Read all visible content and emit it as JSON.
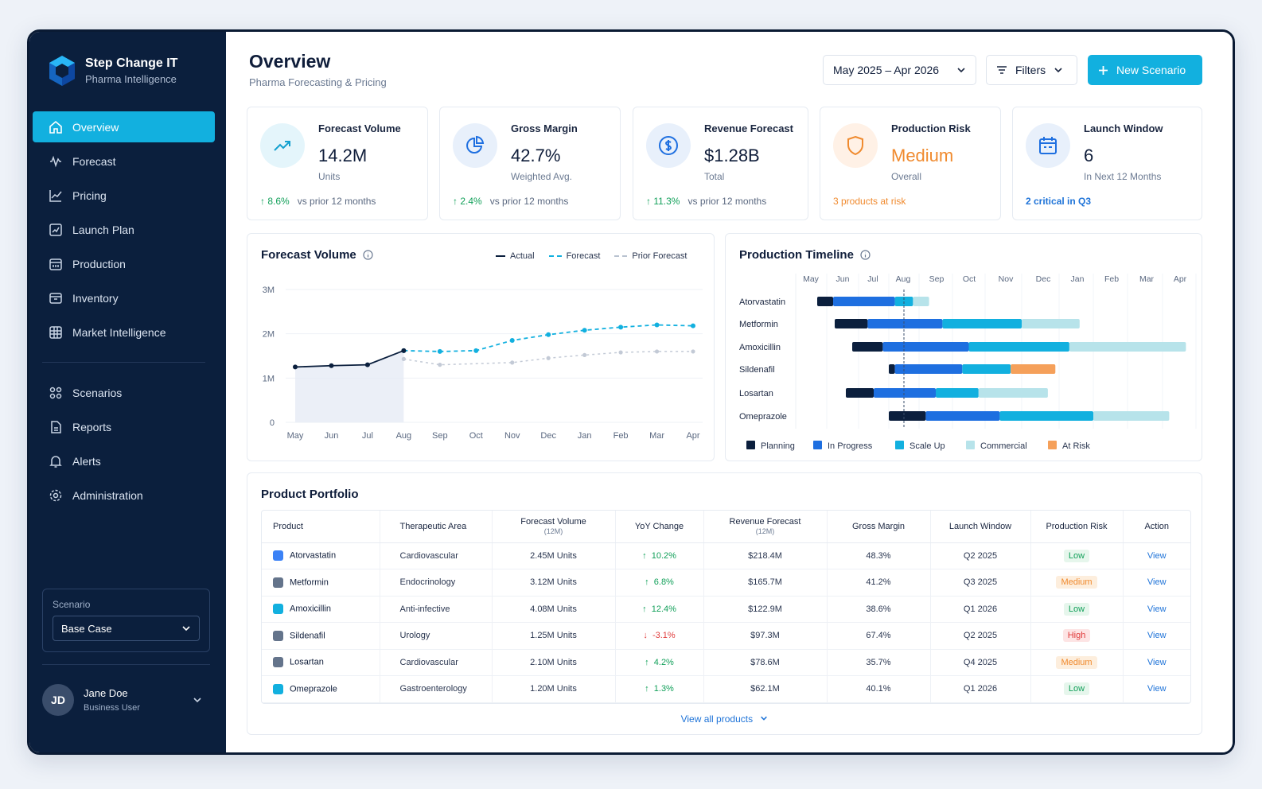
{
  "brand": {
    "name": "Step Change IT",
    "subtitle": "Pharma Intelligence"
  },
  "nav": [
    {
      "label": "Overview",
      "icon": "home-icon",
      "active": true
    },
    {
      "label": "Forecast",
      "icon": "forecast-icon"
    },
    {
      "label": "Pricing",
      "icon": "chart-line-icon"
    },
    {
      "label": "Launch Plan",
      "icon": "launch-icon"
    },
    {
      "label": "Production",
      "icon": "factory-icon"
    },
    {
      "label": "Inventory",
      "icon": "inventory-icon"
    },
    {
      "label": "Market Intelligence",
      "icon": "grid-icon"
    }
  ],
  "nav2": [
    {
      "label": "Scenarios",
      "icon": "scenarios-icon"
    },
    {
      "label": "Reports",
      "icon": "reports-icon"
    },
    {
      "label": "Alerts",
      "icon": "bell-icon"
    },
    {
      "label": "Administration",
      "icon": "gear-icon"
    }
  ],
  "scenario": {
    "label": "Scenario",
    "value": "Base Case"
  },
  "user": {
    "initials": "JD",
    "name": "Jane Doe",
    "role": "Business User"
  },
  "header": {
    "title": "Overview",
    "subtitle": "Pharma Forecasting & Pricing",
    "date_range": "May 2025 – Apr 2026",
    "filters": "Filters",
    "new_scenario": "New Scenario"
  },
  "kpis": [
    {
      "label": "Forecast Volume",
      "value": "14.2M",
      "unit": "Units",
      "delta": "8.6%",
      "footer": "vs prior 12 months",
      "icon": "trend-up-icon"
    },
    {
      "label": "Gross Margin",
      "value": "42.7%",
      "unit": "Weighted Avg.",
      "delta": "2.4%",
      "footer": "vs prior 12 months",
      "icon": "pie-icon"
    },
    {
      "label": "Revenue Forecast",
      "value": "$1.28B",
      "unit": "Total",
      "delta": "11.3%",
      "footer": "vs prior 12 months",
      "icon": "dollar-icon"
    },
    {
      "label": "Production Risk",
      "value": "Medium",
      "unit": "Overall",
      "footer": "3 products at risk",
      "icon": "shield-icon"
    },
    {
      "label": "Launch Window",
      "value": "6",
      "unit": "In Next 12 Months",
      "footer": "2 critical in Q3",
      "icon": "calendar-icon"
    }
  ],
  "colors": {
    "accent": "#12b0df",
    "navy": "#0b1f3d",
    "positive": "#12a05a",
    "negative": "#e03b3b",
    "warning": "#f08a2e",
    "blue": "#1e6fe0",
    "link": "#1e73d8"
  },
  "forecast_chart": {
    "title": "Forecast Volume",
    "legend": {
      "actual": "Actual",
      "forecast": "Forecast",
      "prior": "Prior Forecast"
    }
  },
  "chart_data": {
    "type": "line",
    "categories": [
      "May",
      "Jun",
      "Jul",
      "Aug",
      "Sep",
      "Oct",
      "Nov",
      "Dec",
      "Jan",
      "Feb",
      "Mar",
      "Apr"
    ],
    "yticks": [
      "0",
      "1M",
      "2M",
      "3M"
    ],
    "ylim": [
      0,
      3
    ],
    "series": [
      {
        "name": "Actual",
        "values": [
          1.25,
          1.28,
          1.3,
          1.62,
          null,
          null,
          null,
          null,
          null,
          null,
          null,
          null
        ]
      },
      {
        "name": "Forecast",
        "values": [
          null,
          null,
          null,
          1.62,
          1.6,
          1.62,
          1.85,
          1.98,
          2.08,
          2.15,
          2.2,
          2.18
        ]
      },
      {
        "name": "Prior Forecast",
        "values": [
          null,
          null,
          null,
          1.43,
          1.3,
          null,
          1.35,
          1.45,
          1.52,
          1.58,
          1.6,
          1.6
        ]
      }
    ],
    "grid": true,
    "legend_position": "top-right"
  },
  "timeline": {
    "title": "Production Timeline",
    "months": [
      "May",
      "Jun",
      "Jul",
      "Aug",
      "Sep",
      "Oct",
      "Nov",
      "Dec",
      "Jan",
      "Feb",
      "Mar",
      "Apr"
    ],
    "rows": [
      "Atorvastatin",
      "Metformin",
      "Amoxicillin",
      "Sildenafil",
      "Losartan",
      "Omeprazole"
    ],
    "legend": [
      "Planning",
      "In Progress",
      "Scale Up",
      "Commercial",
      "At Risk"
    ]
  },
  "portfolio": {
    "title": "Product Portfolio",
    "headers": [
      "Product",
      "Therapeutic Area",
      "Forecast Volume",
      "YoY Change",
      "Revenue Forecast",
      "Gross Margin",
      "Launch Window",
      "Production Risk",
      "Action"
    ],
    "subheader": "(12M)",
    "rows": [
      {
        "product": "Atorvastatin",
        "area": "Cardiovascular",
        "volume": "2.45M Units",
        "yoy": "10.2%",
        "dir": "up",
        "revenue": "$218.4M",
        "margin": "48.3%",
        "launch": "Q2 2025",
        "risk": "Low",
        "action": "View",
        "color": "#3b82f6"
      },
      {
        "product": "Metformin",
        "area": "Endocrinology",
        "volume": "3.12M Units",
        "yoy": "6.8%",
        "dir": "up",
        "revenue": "$165.7M",
        "margin": "41.2%",
        "launch": "Q3 2025",
        "risk": "Medium",
        "action": "View",
        "color": "#64748b"
      },
      {
        "product": "Amoxicillin",
        "area": "Anti-infective",
        "volume": "4.08M Units",
        "yoy": "12.4%",
        "dir": "up",
        "revenue": "$122.9M",
        "margin": "38.6%",
        "launch": "Q1 2026",
        "risk": "Low",
        "action": "View",
        "color": "#12b0df"
      },
      {
        "product": "Sildenafil",
        "area": "Urology",
        "volume": "1.25M Units",
        "yoy": "-3.1%",
        "dir": "down",
        "revenue": "$97.3M",
        "margin": "67.4%",
        "launch": "Q2 2025",
        "risk": "High",
        "action": "View",
        "color": "#64748b"
      },
      {
        "product": "Losartan",
        "area": "Cardiovascular",
        "volume": "2.10M Units",
        "yoy": "4.2%",
        "dir": "up",
        "revenue": "$78.6M",
        "margin": "35.7%",
        "launch": "Q4 2025",
        "risk": "Medium",
        "action": "View",
        "color": "#64748b"
      },
      {
        "product": "Omeprazole",
        "area": "Gastroenterology",
        "volume": "1.20M Units",
        "yoy": "1.3%",
        "dir": "up",
        "revenue": "$62.1M",
        "margin": "40.1%",
        "launch": "Q1 2026",
        "risk": "Low",
        "action": "View",
        "color": "#12b0df"
      }
    ],
    "view_all": "View all products"
  }
}
